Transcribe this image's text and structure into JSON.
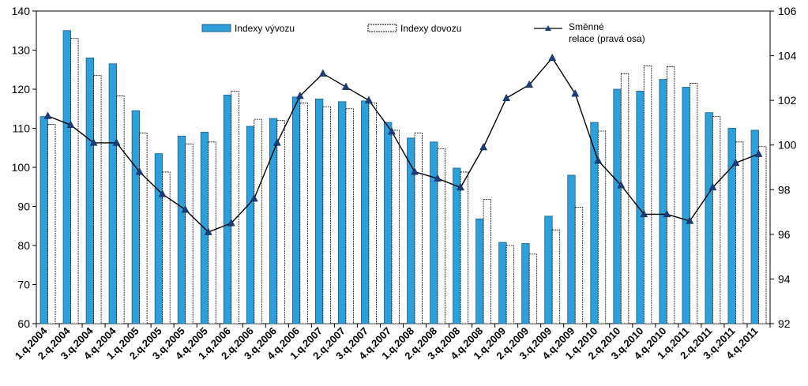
{
  "chart_data": {
    "type": "bar",
    "categories": [
      "1.q.2004",
      "2.q.2004",
      "3.q.2004",
      "4.q.2004",
      "1.q.2005",
      "2.q.2005",
      "3.q.2005",
      "4.q.2005",
      "1.q.2006",
      "2.q.2006",
      "3.q.2006",
      "4.q.2006",
      "1.q.2007",
      "2.q.2007",
      "3.q.2007",
      "4.q.2007",
      "1.q.2008",
      "2.q.2008",
      "3.q.2008",
      "4.q.2008",
      "1.q.2009",
      "2.q.2009",
      "3.q.2009",
      "4.q.2009",
      "1.q.2010",
      "2.q.2010",
      "3.q.2010",
      "4.q.2010",
      "1.q.2011",
      "2.q.2011",
      "3.q.2011",
      "4.q.2011"
    ],
    "series": [
      {
        "name": "Indexy vývozu",
        "kind": "bar",
        "axis": "left",
        "color": "#2e9fd8",
        "values": [
          113,
          135,
          128,
          126.5,
          114.5,
          103.5,
          108,
          109,
          118.5,
          110.5,
          112.5,
          118,
          117.5,
          116.8,
          117,
          111.5,
          107.5,
          106.5,
          99.8,
          86.8,
          80.8,
          80.5,
          87.5,
          98,
          111.5,
          120,
          119.5,
          122.5,
          120.5,
          114,
          110,
          109.5
        ]
      },
      {
        "name": "Indexy dovozu",
        "kind": "bar",
        "axis": "left",
        "color": "#ffffff",
        "values": [
          111,
          133,
          123.5,
          118.3,
          108.8,
          98.8,
          106,
          106.5,
          119.5,
          112.3,
          112,
          116.5,
          115.5,
          115,
          116.5,
          109.5,
          108.8,
          104.8,
          98.8,
          91.8,
          80,
          77.8,
          84,
          89.8,
          109.3,
          124,
          126,
          125.8,
          121.5,
          113,
          106.5,
          105.3
        ]
      },
      {
        "name": "Směnné relace (pravá osa)",
        "kind": "line",
        "axis": "right",
        "color": "#000000",
        "values": [
          101.3,
          100.9,
          100.1,
          100.1,
          98.8,
          97.8,
          97.1,
          96.1,
          96.5,
          97.6,
          100.1,
          102.2,
          103.2,
          102.6,
          102,
          100.6,
          98.8,
          98.5,
          98.1,
          99.9,
          102.1,
          102.7,
          103.9,
          102.3,
          99.3,
          98.2,
          96.9,
          96.9,
          96.6,
          98.1,
          99.2,
          99.6
        ]
      }
    ],
    "legend": {
      "export_label": "Indexy vývozu",
      "import_label": "Indexy dovozu",
      "line_label_1": "Směnné",
      "line_label_2": "relace (pravá osa)",
      "placement": "top"
    },
    "ylim": [
      60,
      140
    ],
    "y_ticks": [
      60,
      70,
      80,
      90,
      100,
      110,
      120,
      130,
      140
    ],
    "y2lim": [
      92,
      106
    ],
    "y2_ticks": [
      92,
      94,
      96,
      98,
      100,
      102,
      104,
      106
    ],
    "grid": false
  }
}
